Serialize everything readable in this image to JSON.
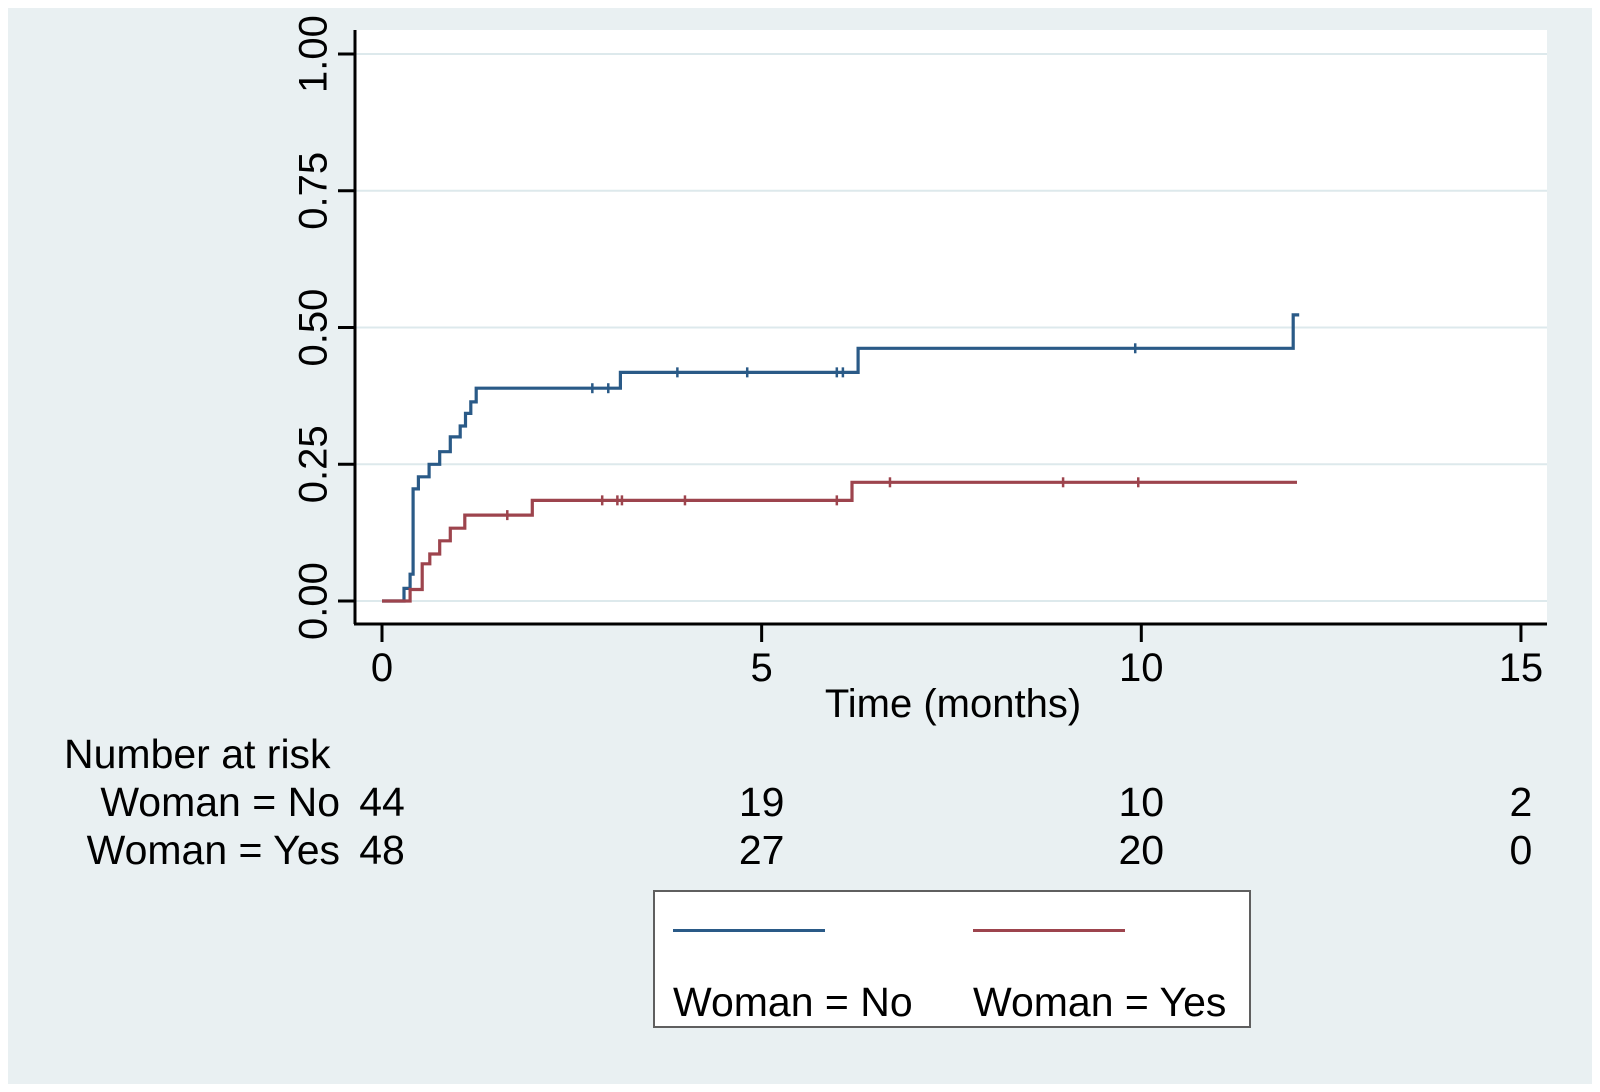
{
  "colors": {
    "background": "#e9f0f2",
    "plot_background": "#ffffff",
    "gridline": "#dde9ec",
    "axis": "#000000",
    "text": "#000000",
    "legend_border": "#5f5f5f",
    "series_no": "#2a5a87",
    "series_yes": "#9d444d"
  },
  "chart_data": {
    "type": "line",
    "subtype": "kaplan-meier-cumulative-incidence-step",
    "title": "",
    "xlabel": "Time (months)",
    "ylabel": "",
    "xlim": [
      0,
      15.6
    ],
    "ylim": [
      0,
      1.04
    ],
    "xticks": [
      0,
      5,
      10,
      15
    ],
    "yticks": [
      "0.00",
      "0.25",
      "0.50",
      "0.75",
      "1.00"
    ],
    "grid": "horizontal",
    "legend_position": "bottom-center",
    "series": [
      {
        "name": "Woman = No",
        "color": "#2a5a87",
        "start": [
          0,
          0
        ],
        "steps": [
          [
            0.29,
            0.023
          ],
          [
            0.37,
            0.049
          ],
          [
            0.41,
            0.205
          ],
          [
            0.48,
            0.227
          ],
          [
            0.62,
            0.25
          ],
          [
            0.76,
            0.273
          ],
          [
            0.9,
            0.3
          ],
          [
            1.03,
            0.32
          ],
          [
            1.1,
            0.343
          ],
          [
            1.17,
            0.364
          ],
          [
            1.24,
            0.389
          ],
          [
            3.14,
            0.418
          ],
          [
            6.27,
            0.462
          ],
          [
            12.0,
            0.523
          ]
        ],
        "end_time": 12.08,
        "censor_times": [
          2.77,
          2.98,
          3.89,
          4.81,
          5.99,
          6.07,
          9.92
        ]
      },
      {
        "name": "Woman = Yes",
        "color": "#9d444d",
        "start": [
          0,
          0
        ],
        "steps": [
          [
            0.37,
            0.021
          ],
          [
            0.53,
            0.068
          ],
          [
            0.63,
            0.086
          ],
          [
            0.76,
            0.11
          ],
          [
            0.9,
            0.133
          ],
          [
            1.09,
            0.157
          ],
          [
            1.98,
            0.184
          ],
          [
            6.19,
            0.217
          ]
        ],
        "end_time": 12.05,
        "censor_times": [
          1.65,
          2.9,
          3.1,
          3.16,
          3.99,
          5.99,
          6.69,
          8.97,
          9.96
        ]
      }
    ]
  },
  "risk_table": {
    "title": "Number at risk",
    "times": [
      0,
      5,
      10,
      15
    ],
    "rows": [
      {
        "label": "Woman = No",
        "counts": [
          "44",
          "19",
          "10",
          "2"
        ]
      },
      {
        "label": "Woman = Yes",
        "counts": [
          "48",
          "27",
          "20",
          "0"
        ]
      }
    ]
  },
  "legend": {
    "items": [
      {
        "label": "Woman = No"
      },
      {
        "label": "Woman = Yes"
      }
    ]
  }
}
